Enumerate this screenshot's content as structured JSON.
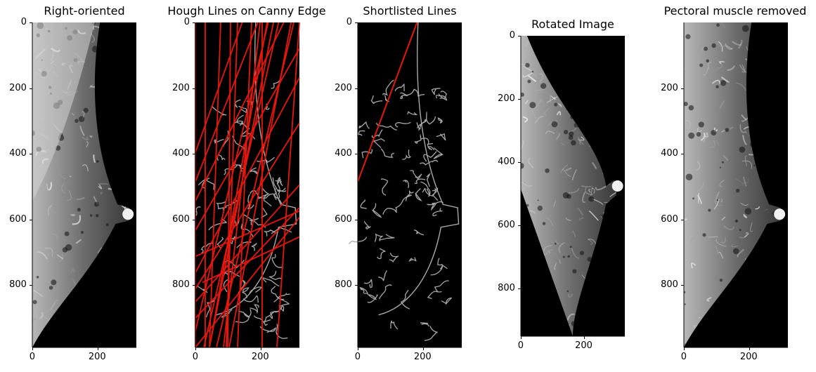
{
  "panels": [
    {
      "title": "Right-oriented",
      "ylabels": [
        "0",
        "200",
        "400",
        "600",
        "800"
      ],
      "xlabels": [
        "0",
        "200"
      ],
      "image": "mammogram-right-oriented"
    },
    {
      "title": "Hough Lines on Canny Edge",
      "ylabels": [
        "0",
        "200",
        "400",
        "600",
        "800"
      ],
      "xlabels": [
        "0",
        "200"
      ],
      "image": "canny-edges-with-hough-lines",
      "line_color": "#e8160c"
    },
    {
      "title": "Shortlisted Lines",
      "ylabels": [
        "0",
        "200",
        "400",
        "600",
        "800"
      ],
      "xlabels": [
        "0",
        "200"
      ],
      "image": "canny-edges-with-shortlisted-line",
      "line_color": "#e8160c"
    },
    {
      "title": "Rotated Image",
      "ylabels": [
        "0",
        "200",
        "400",
        "600",
        "800"
      ],
      "xlabels": [
        "0",
        "200"
      ],
      "image": "mammogram-rotated"
    },
    {
      "title": "Pectoral muscle removed",
      "ylabels": [
        "200",
        "400",
        "600",
        "800"
      ],
      "xlabels": [
        "0",
        "200"
      ],
      "image": "mammogram-pectoral-removed"
    }
  ]
}
